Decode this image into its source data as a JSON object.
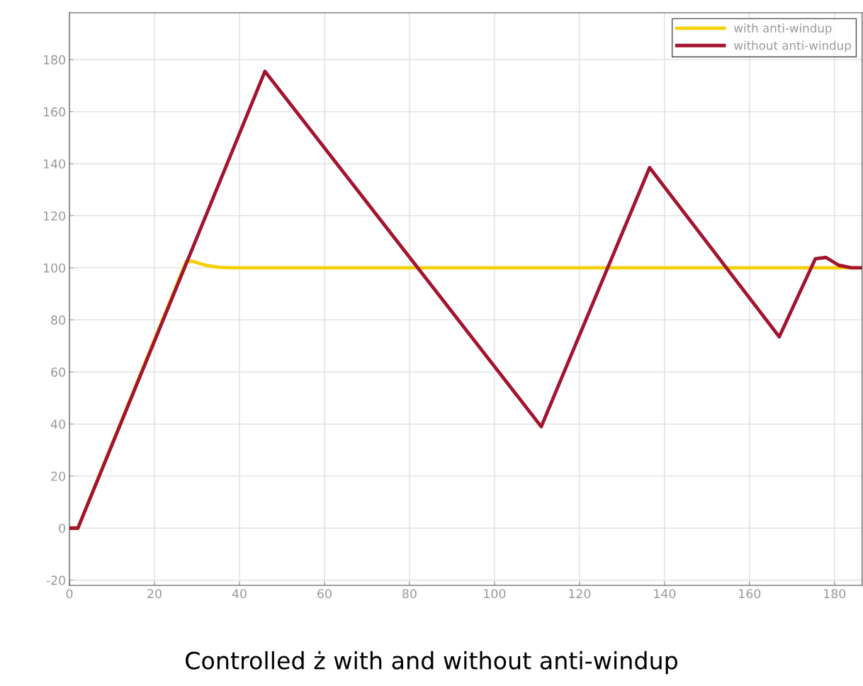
{
  "chart_data": {
    "type": "line",
    "title": "Controlled ż with and without anti-windup",
    "series": [
      {
        "name": "with anti-windup",
        "color": "#f5d000",
        "x": [
          0,
          2,
          27.5,
          29,
          32,
          35,
          38,
          186.5
        ],
        "values": [
          0,
          0,
          102.5,
          102.5,
          101,
          100.2,
          100,
          100
        ]
      },
      {
        "name": "without anti-windup",
        "color": "#a2142f",
        "x": [
          0,
          2,
          46,
          111,
          136.5,
          167,
          175.5,
          178,
          181,
          184,
          186.5
        ],
        "values": [
          0,
          0,
          175.5,
          39,
          138.5,
          73.5,
          103.5,
          104,
          101,
          100,
          100
        ]
      }
    ],
    "xlim": [
      0,
      186.5
    ],
    "xticks": [
      0,
      20,
      40,
      60,
      80,
      100,
      120,
      140,
      160,
      180
    ],
    "ylim": [
      -22,
      198
    ],
    "yticks": [
      -20,
      0,
      20,
      40,
      60,
      80,
      100,
      120,
      140,
      160,
      180
    ],
    "grid": true,
    "legend": "top right",
    "line_style": "solid",
    "marker": "none"
  }
}
